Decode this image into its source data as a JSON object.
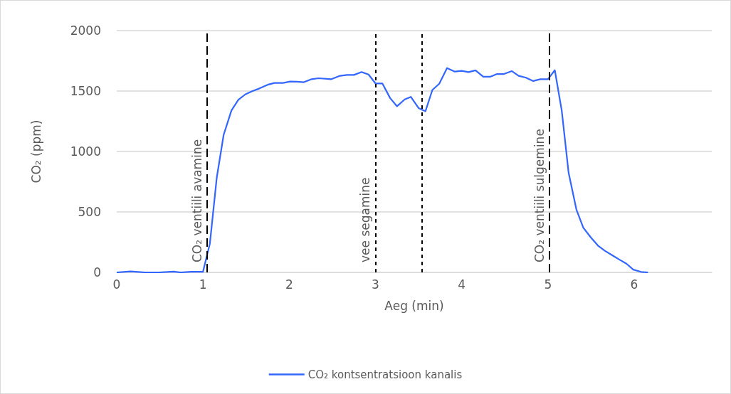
{
  "chart_data": {
    "type": "line",
    "xlabel": "Aeg (min)",
    "ylabel": "CO₂ (ppm)",
    "x": [
      0,
      0.16,
      0.33,
      0.41,
      0.49,
      0.66,
      0.74,
      0.86,
      1.0,
      1.08,
      1.16,
      1.24,
      1.33,
      1.41,
      1.49,
      1.57,
      1.65,
      1.75,
      1.83,
      1.93,
      2.01,
      2.09,
      2.17,
      2.26,
      2.34,
      2.49,
      2.59,
      2.67,
      2.75,
      2.84,
      2.92,
      3.0,
      3.08,
      3.17,
      3.25,
      3.34,
      3.41,
      3.5,
      3.58,
      3.66,
      3.74,
      3.83,
      3.92,
      4.0,
      4.08,
      4.16,
      4.25,
      4.33,
      4.41,
      4.49,
      4.58,
      4.66,
      4.74,
      4.83,
      4.91,
      5.0,
      5.08,
      5.16,
      5.24,
      5.33,
      5.41,
      5.5,
      5.58,
      5.66,
      5.75,
      5.83,
      5.91,
      5.99,
      6.08,
      6.16
    ],
    "series": [
      {
        "name": "CO₂ kontsentratsioon kanalis",
        "color": "#3366ff",
        "values": [
          0,
          8,
          0,
          0,
          0,
          7,
          0,
          5,
          5,
          238,
          784,
          1138,
          1339,
          1427,
          1472,
          1499,
          1520,
          1552,
          1567,
          1567,
          1579,
          1577,
          1573,
          1598,
          1606,
          1598,
          1626,
          1633,
          1633,
          1657,
          1637,
          1563,
          1563,
          1442,
          1374,
          1431,
          1452,
          1359,
          1333,
          1509,
          1560,
          1690,
          1661,
          1667,
          1657,
          1671,
          1618,
          1618,
          1641,
          1641,
          1665,
          1626,
          1612,
          1583,
          1598,
          1598,
          1672,
          1339,
          823,
          520,
          370,
          287,
          222,
          179,
          140,
          105,
          72,
          23,
          4,
          0
        ]
      }
    ],
    "xlim": [
      0,
      6.9
    ],
    "xticks": [
      0,
      1,
      2,
      3,
      4,
      5,
      6
    ],
    "ylim": [
      0,
      2000
    ],
    "yticks": [
      0,
      500,
      1000,
      1500,
      2000
    ],
    "grid": "y",
    "legend": "bottom",
    "marker": "none",
    "line_style": "solid",
    "ref_lines": [
      {
        "axis": "x",
        "value": 1.05,
        "label": "CO₂ ventiili avamine",
        "color": "#000000",
        "line_style": "dashed"
      },
      {
        "axis": "x",
        "value": 3.0,
        "label": "vee segamine",
        "color": "#000000",
        "line_style": "dotted"
      },
      {
        "axis": "x",
        "value": 3.54,
        "color": "#000000",
        "line_style": "dotted"
      },
      {
        "axis": "x",
        "value": 5.02,
        "label": "CO₂ ventiili sulgemine",
        "color": "#000000",
        "line_style": "dashed"
      }
    ]
  }
}
